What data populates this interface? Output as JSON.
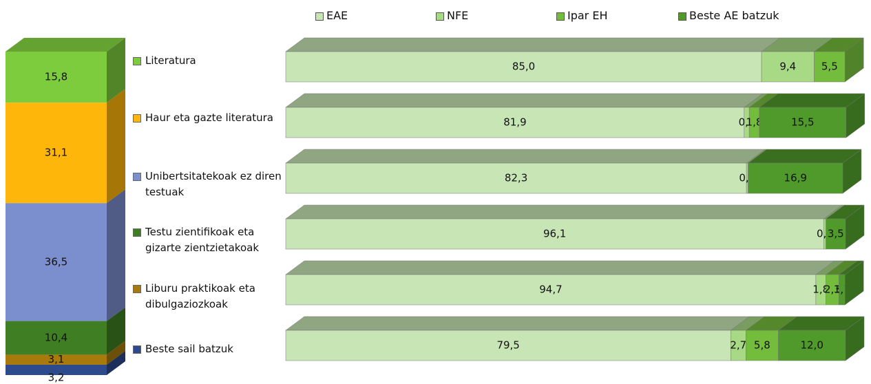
{
  "chart_data": [
    {
      "type": "stacked-column",
      "series": [
        {
          "name": "Literatura",
          "color": "#7dcc3d",
          "values": [
            15.8
          ],
          "value_labels": [
            "15,8"
          ]
        },
        {
          "name": "Haur eta gazte literatura",
          "color": "#ffb60b",
          "values": [
            31.1
          ],
          "value_labels": [
            "31,1"
          ]
        },
        {
          "name": "Unibertsitatekoak ez diren testuak",
          "color": "#7b8ecd",
          "values": [
            36.5
          ],
          "value_labels": [
            "36,5"
          ]
        },
        {
          "name": "Testu zientifikoak eta gizarte zientzietakoak",
          "color": "#3f7e22",
          "values": [
            10.4
          ],
          "value_labels": [
            "10,4"
          ]
        },
        {
          "name": "Liburu praktikoak eta dibulgaziozkoak",
          "color": "#a87a0b",
          "values": [
            3.1
          ],
          "value_labels": [
            "3,1"
          ]
        },
        {
          "name": "Beste sail batzuk",
          "color": "#2d4a8c",
          "values": [
            3.2
          ],
          "value_labels": [
            "3,2"
          ]
        }
      ]
    },
    {
      "type": "stacked-hbar",
      "series": [
        {
          "name": "EAE",
          "color": "#c8e6b5",
          "values": [
            85.0,
            81.9,
            82.3,
            96.1,
            94.7,
            79.5
          ],
          "value_labels": [
            "85,0",
            "81,9",
            "82,3",
            "96,1",
            "94,7",
            "79,5"
          ]
        },
        {
          "name": "NFE",
          "color": "#a8da86",
          "values": [
            9.4,
            0.9,
            0.3,
            0.4,
            1.8,
            2.7
          ],
          "value_labels": [
            "9,4",
            "0,9",
            "0,3",
            "0,4",
            "1,8",
            "2,7"
          ]
        },
        {
          "name": "Ipar EH",
          "color": "#74bd3c",
          "values": [
            5.5,
            1.8,
            null,
            null,
            2.3,
            5.8
          ],
          "value_labels": [
            "5,5",
            "1,8",
            null,
            null,
            "2,3",
            "5,8"
          ]
        },
        {
          "name": "Beste AE batzuk",
          "color": "#4f9a2b",
          "values": [
            null,
            15.5,
            16.9,
            3.5,
            1.1,
            12.0
          ],
          "value_labels": [
            null,
            "15,5",
            "16,9",
            "3,5",
            "1,1",
            "12,0"
          ]
        }
      ]
    }
  ]
}
